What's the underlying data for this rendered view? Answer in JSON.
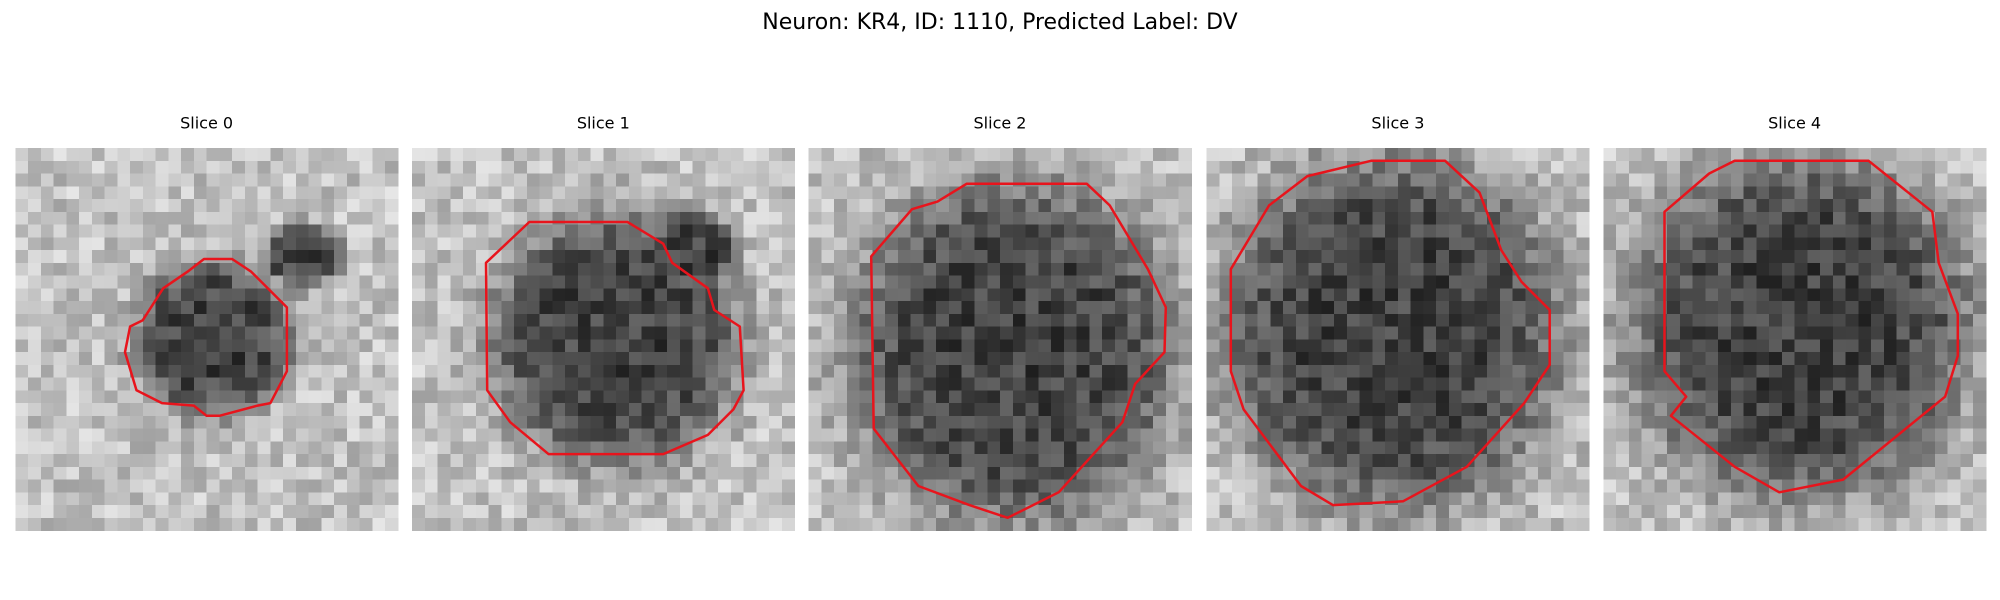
{
  "title": "Neuron: KR4, ID: 1110, Predicted Label: DV",
  "panels": [
    {
      "title": "Slice 0"
    },
    {
      "title": "Slice 1"
    },
    {
      "title": "Slice 2"
    },
    {
      "title": "Slice 3"
    },
    {
      "title": "Slice 4"
    }
  ]
}
